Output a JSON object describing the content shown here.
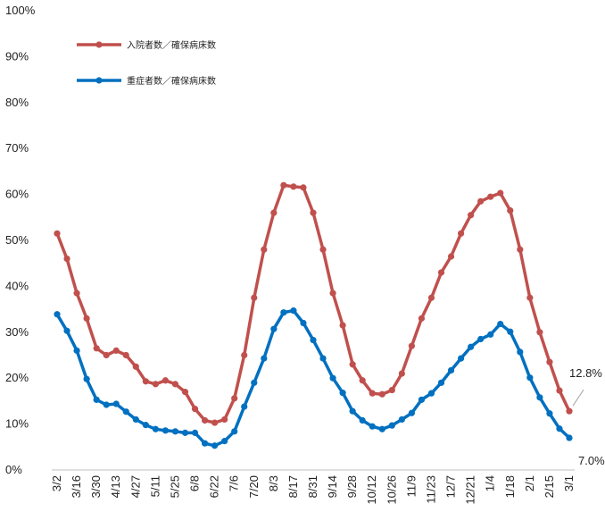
{
  "chart_data": {
    "type": "line",
    "title": "",
    "xlabel": "",
    "ylabel": "",
    "ylim": [
      0,
      100
    ],
    "yticks": [
      "0%",
      "10%",
      "20%",
      "30%",
      "40%",
      "50%",
      "60%",
      "70%",
      "80%",
      "90%",
      "100%"
    ],
    "grid": false,
    "legend_position": "top-left",
    "x_tick_labels": [
      "3/2",
      "3/16",
      "3/30",
      "4/13",
      "4/27",
      "5/11",
      "5/25",
      "6/8",
      "6/22",
      "7/6",
      "7/20",
      "8/3",
      "8/17",
      "8/31",
      "9/14",
      "9/28",
      "10/12",
      "10/26",
      "11/9",
      "11/23",
      "12/7",
      "12/21",
      "1/4",
      "1/18",
      "2/1",
      "2/15",
      "3/1"
    ],
    "series": [
      {
        "name": "入院者数／確保病床数",
        "color": "#C0504D",
        "values": [
          51.5,
          46,
          38.5,
          33,
          26.5,
          25,
          26,
          25,
          22.5,
          19.3,
          18.7,
          19.5,
          18.7,
          17,
          13.3,
          10.8,
          10.3,
          11,
          15.6,
          25,
          37.5,
          48,
          56,
          62,
          61.7,
          61.5,
          56,
          48,
          38.5,
          31.5,
          23,
          19.5,
          16.7,
          16.5,
          17.4,
          21,
          27,
          33,
          37.5,
          43,
          46.5,
          51.5,
          55.5,
          58.5,
          59.5,
          60.3,
          56.5,
          48,
          37.5,
          30,
          23.5,
          17.3,
          12.8
        ]
      },
      {
        "name": "重症者数／確保病床数",
        "color": "#0070C0",
        "values": [
          33.9,
          30.3,
          26,
          19.8,
          15.3,
          14.2,
          14.4,
          12.7,
          11,
          9.8,
          8.9,
          8.6,
          8.4,
          8.1,
          8.1,
          5.8,
          5.3,
          6.3,
          8.4,
          13.8,
          19,
          24.3,
          30.7,
          34.3,
          34.7,
          32,
          28.3,
          24.3,
          20,
          16.8,
          12.8,
          10.8,
          9.5,
          8.9,
          9.7,
          11,
          12.4,
          15.3,
          16.7,
          19,
          21.7,
          24.3,
          26.8,
          28.5,
          29.5,
          31.8,
          30.1,
          25.7,
          20.1,
          15.8,
          12.3,
          9,
          7
        ]
      }
    ],
    "annotations": [
      {
        "text": "12.8%",
        "series": 0,
        "index": 52
      },
      {
        "text": "7.0%",
        "series": 1,
        "index": 52
      }
    ]
  }
}
